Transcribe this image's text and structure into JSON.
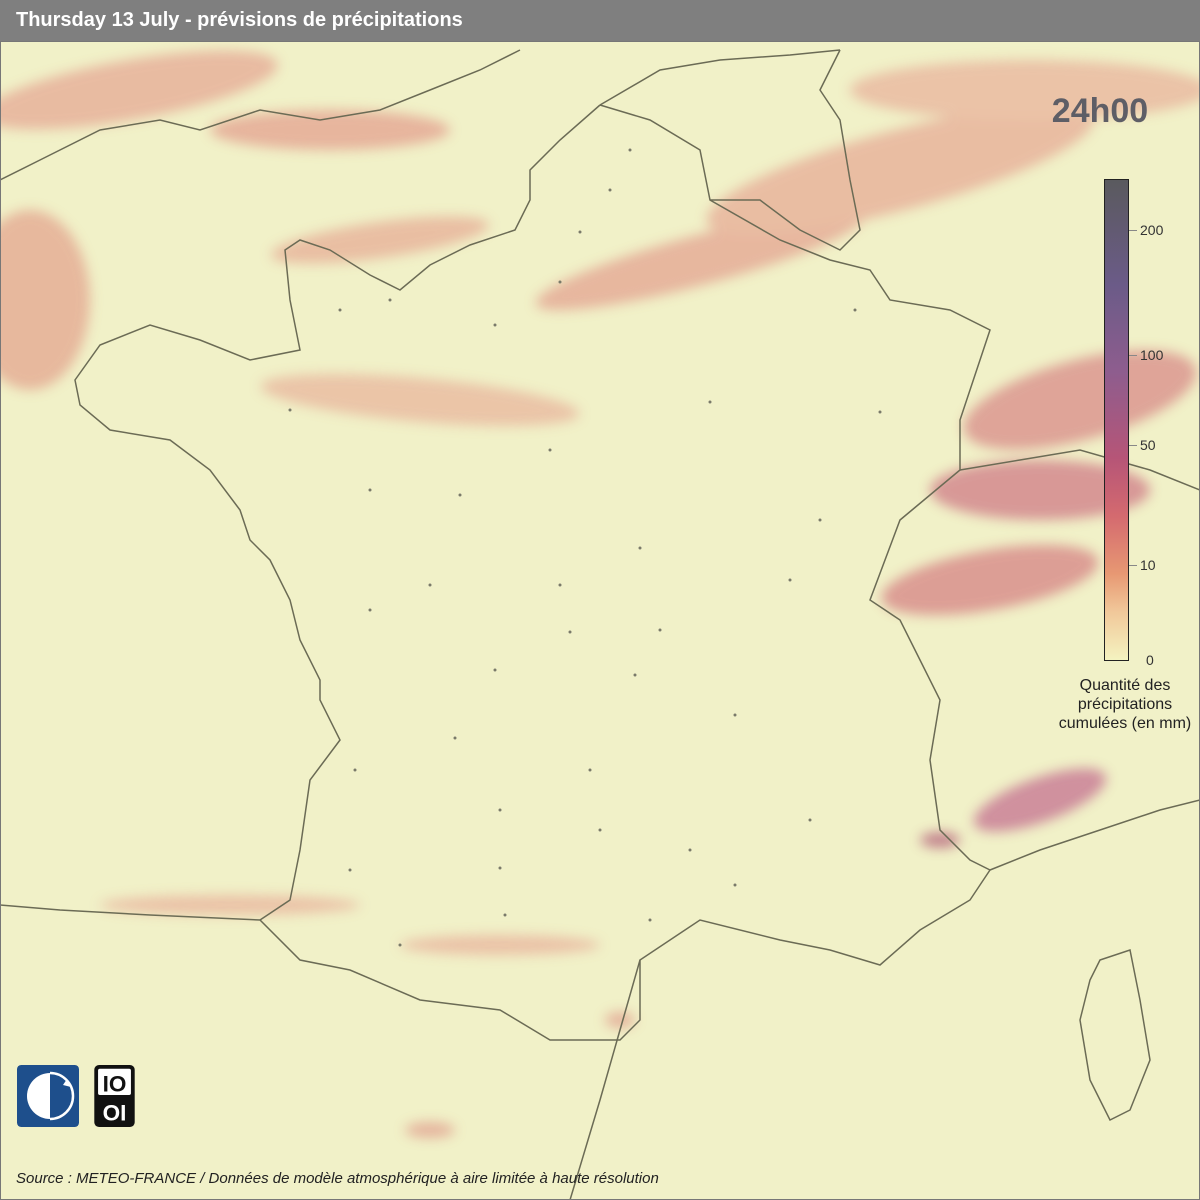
{
  "header": {
    "title": "Thursday 13 July - prévisions de précipitations"
  },
  "map": {
    "time_label": "24h00",
    "legend": {
      "ticks": [
        "200",
        "100",
        "50",
        "10",
        "0"
      ],
      "title_lines": [
        "Quantité des",
        "précipitations",
        "cumulées (en mm)"
      ],
      "colors": {
        "low": "#f4f3c0",
        "mid": "#d46a6f",
        "high": "#6b5b88",
        "max": "#5a5a5e"
      }
    },
    "background_color": "#f1f1c8",
    "border_color": "#6b6b55"
  },
  "logos": [
    {
      "name": "meteo-france-logo"
    },
    {
      "name": "open-data-logo",
      "text": "IO OI"
    }
  ],
  "footer": {
    "source": "Source : METEO-FRANCE / Données de modèle atmosphérique à aire limitée à haute résolution"
  }
}
